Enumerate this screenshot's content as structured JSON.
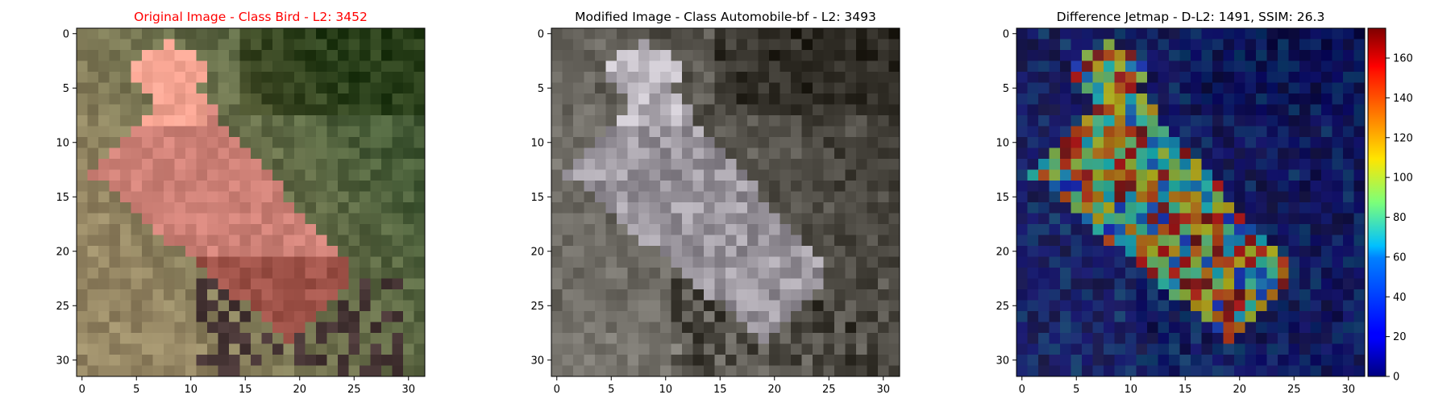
{
  "figure": {
    "panels": [
      {
        "title": "Original Image - Class Bird - L2: 3452",
        "title_color": "#ff0000",
        "kind": "original"
      },
      {
        "title": "Modified Image - Class Automobile-bf - L2: 3493",
        "title_color": "#000000",
        "kind": "modified"
      },
      {
        "title": "Difference Jetmap - D-L2: 1491, SSIM: 26.3",
        "title_color": "#000000",
        "kind": "jetmap"
      }
    ],
    "colorbar": {
      "ticks": [
        "0",
        "20",
        "40",
        "60",
        "80",
        "100",
        "120",
        "140",
        "160"
      ],
      "colormap": "jet"
    }
  },
  "chart_data": [
    {
      "type": "heatmap",
      "title": "Original Image - Class Bird - L2: 3452",
      "x_ticks": [
        "0",
        "5",
        "10",
        "15",
        "20",
        "25",
        "30"
      ],
      "y_ticks": [
        "0",
        "5",
        "10",
        "15",
        "20",
        "25",
        "30"
      ],
      "xlim": [
        -0.5,
        31.5
      ],
      "ylim": [
        31.5,
        -0.5
      ],
      "grid": "32x32 RGB pixels"
    },
    {
      "type": "heatmap",
      "title": "Modified Image - Class Automobile-bf - L2: 3493",
      "x_ticks": [
        "0",
        "5",
        "10",
        "15",
        "20",
        "25",
        "30"
      ],
      "y_ticks": [
        "0",
        "5",
        "10",
        "15",
        "20",
        "25",
        "30"
      ],
      "xlim": [
        -0.5,
        31.5
      ],
      "ylim": [
        31.5,
        -0.5
      ],
      "grid": "32x32 RGB pixels"
    },
    {
      "type": "heatmap",
      "title": "Difference Jetmap - D-L2: 1491, SSIM: 26.3",
      "x_ticks": [
        "0",
        "5",
        "10",
        "15",
        "20",
        "25",
        "30"
      ],
      "y_ticks": [
        "0",
        "5",
        "10",
        "15",
        "20",
        "25",
        "30"
      ],
      "xlim": [
        -0.5,
        31.5
      ],
      "ylim": [
        31.5,
        -0.5
      ],
      "colorbar_range": [
        0,
        175
      ],
      "colorbar_ticks": [
        0,
        20,
        40,
        60,
        80,
        100,
        120,
        140,
        160
      ]
    }
  ]
}
